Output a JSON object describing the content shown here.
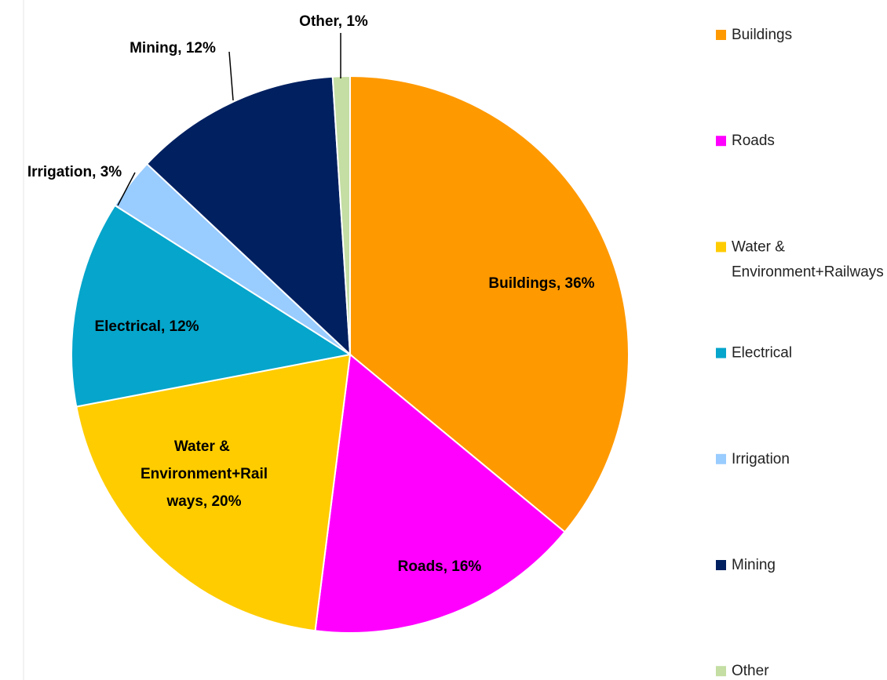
{
  "chart_data": {
    "type": "pie",
    "categories": [
      "Buildings",
      "Roads",
      "Water & Environment+Railways",
      "Electrical",
      "Irrigation",
      "Mining",
      "Other"
    ],
    "values": [
      36,
      16,
      20,
      12,
      3,
      12,
      1
    ],
    "value_labels": [
      "Buildings, 36%",
      "Roads, 16%",
      "Water & Environment+Railways, 20%",
      "Electrical, 12%",
      "Irrigation, 3%",
      "Mining, 12%",
      "Other, 1%"
    ],
    "colors": [
      "#FF9900",
      "#FF00FF",
      "#FFCC00",
      "#06A5CB",
      "#99CCFF",
      "#002060",
      "#C4DEA3"
    ],
    "legend": "right"
  }
}
